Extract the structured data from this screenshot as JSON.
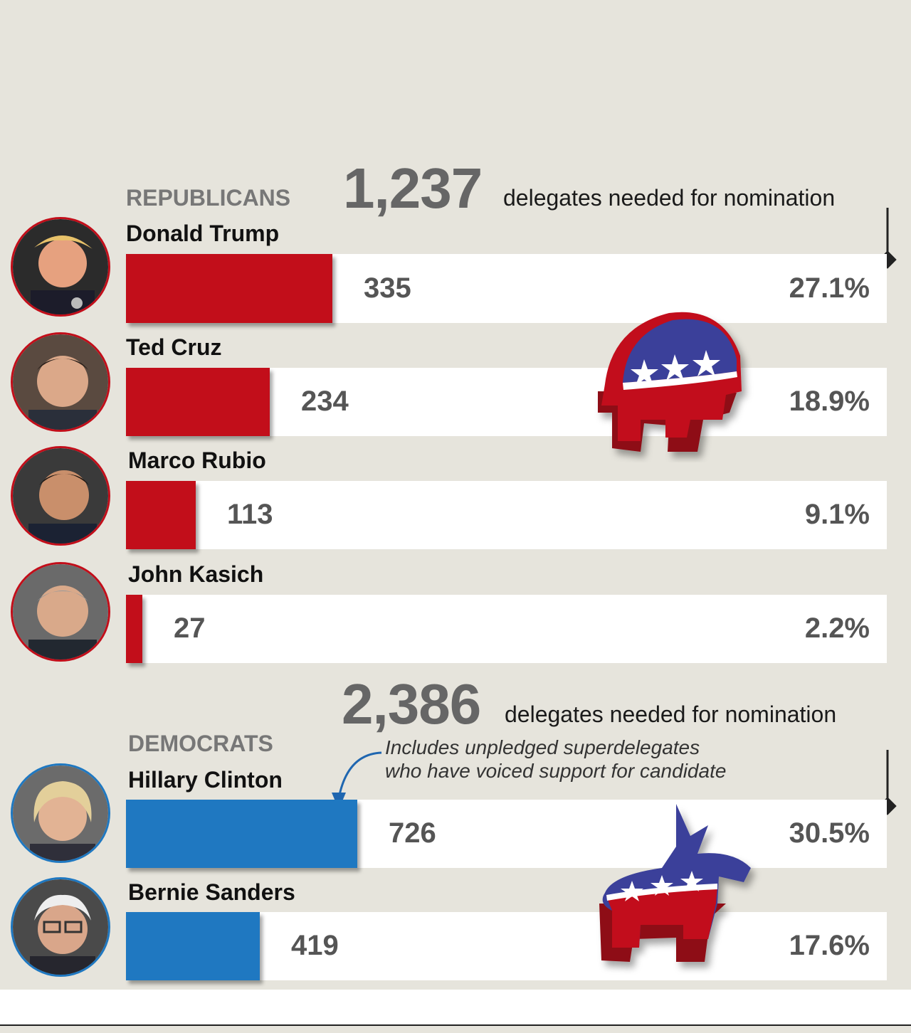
{
  "chart_data": [
    {
      "type": "bar",
      "orientation": "horizontal",
      "party": "REPUBLICANS",
      "needed_value": "1,237",
      "needed_text": "delegates needed for nomination",
      "target": 1237,
      "bar_color": "#c20e1a",
      "categories": [
        "Donald Trump",
        "Ted Cruz",
        "Marco Rubio",
        "John Kasich"
      ],
      "values": [
        335,
        234,
        113,
        27
      ],
      "percent_labels": [
        "27.1%",
        "18.9%",
        "9.1%",
        "2.2%"
      ],
      "xlim": [
        0,
        1237
      ]
    },
    {
      "type": "bar",
      "orientation": "horizontal",
      "party": "DEMOCRATS",
      "needed_value": "2,386",
      "needed_text": "delegates needed for nomination",
      "target": 2386,
      "bar_color": "#1f78c1",
      "categories": [
        "Hillary Clinton",
        "Bernie Sanders"
      ],
      "values": [
        726,
        419
      ],
      "percent_labels": [
        "30.5%",
        "17.6%"
      ],
      "xlim": [
        0,
        2386
      ],
      "annotation": "Includes unpledged superdelegates who have voiced support for candidate",
      "annotation_lines": [
        "Includes unpledged superdelegates",
        "who have voiced support for candidate"
      ]
    }
  ],
  "colors": {
    "background": "#e6e4dc",
    "republican_red": "#c20e1a",
    "democrat_blue": "#1f78c1",
    "mascot_blue": "#3a3f9a"
  },
  "icons": [
    "elephant-icon",
    "donkey-icon",
    "target-marker-icon",
    "curved-arrow-icon"
  ]
}
